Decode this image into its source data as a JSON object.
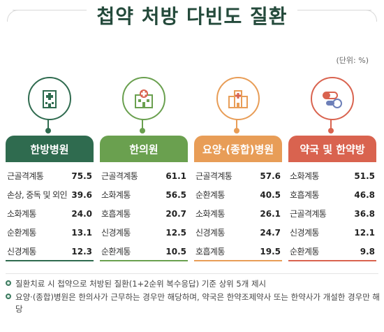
{
  "title": "첩약 처방 다빈도 질환",
  "unit": "(단위: %)",
  "colors": {
    "title": "#244a3b",
    "hanbang": "#2f6b4f",
    "hanui": "#6aa04f",
    "yoyang": "#e89d57",
    "yakguk": "#d9634f"
  },
  "chart_data": {
    "type": "table",
    "title": "첩약 처방 다빈도 질환",
    "unit": "(단위: %)",
    "groups": [
      {
        "name": "한방병원",
        "icon": "hospital-icon",
        "items": [
          {
            "label": "근골격계통",
            "value": 75.5
          },
          {
            "label": "손상, 중독 및 외인",
            "value": 39.6
          },
          {
            "label": "소화계통",
            "value": 24.0
          },
          {
            "label": "순환계통",
            "value": 13.1
          },
          {
            "label": "신경계통",
            "value": 12.3
          }
        ]
      },
      {
        "name": "한의원",
        "icon": "clinic-icon",
        "items": [
          {
            "label": "근골격계통",
            "value": 61.1
          },
          {
            "label": "소화계통",
            "value": 56.5
          },
          {
            "label": "호흡계통",
            "value": 20.7
          },
          {
            "label": "신경계통",
            "value": 12.5
          },
          {
            "label": "순환계통",
            "value": 10.5
          }
        ]
      },
      {
        "name": "요양·(종합)병원",
        "icon": "care-hospital-icon",
        "items": [
          {
            "label": "근골격계통",
            "value": 57.6
          },
          {
            "label": "순환계통",
            "value": 40.5
          },
          {
            "label": "소화계통",
            "value": 26.1
          },
          {
            "label": "신경계통",
            "value": 24.7
          },
          {
            "label": "호흡계통",
            "value": 19.5
          }
        ]
      },
      {
        "name": "약국 및 한약방",
        "icon": "pills-icon",
        "items": [
          {
            "label": "소화계통",
            "value": 51.5
          },
          {
            "label": "호흡계통",
            "value": 46.8
          },
          {
            "label": "근골격계통",
            "value": 36.8
          },
          {
            "label": "신경계통",
            "value": 12.1
          },
          {
            "label": "순환계통",
            "value": 9.8
          }
        ]
      }
    ]
  },
  "notes": [
    "질환치료 시 첩약으로 처방된 질환(1+2순위 복수응답) 기준 상위 5개 제시",
    "요양·(종합)병원은 한의사가 근무하는 경우만 해당하며, 약국은 한약조제약사 또는 한약사가 개설한 경우만 해당"
  ]
}
